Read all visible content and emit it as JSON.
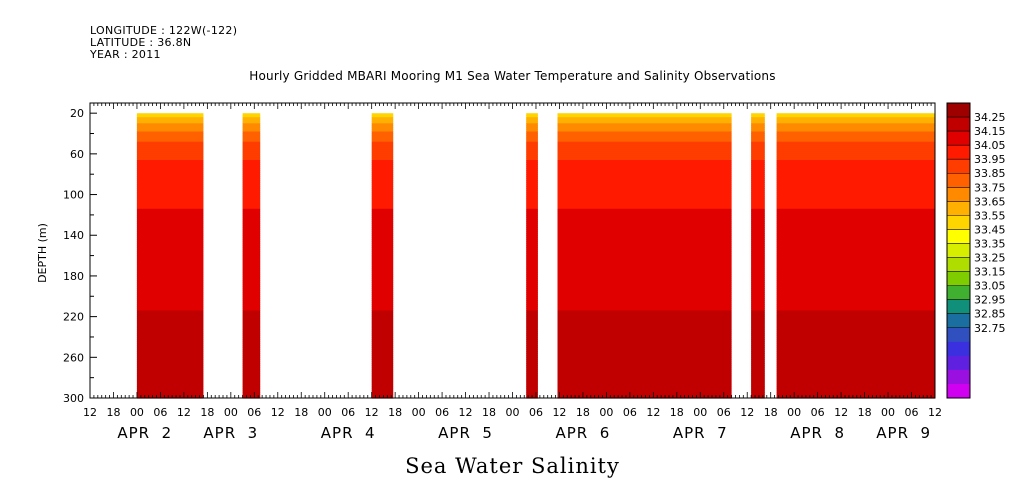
{
  "header": {
    "longitude": "LONGITUDE : 122W(-122)",
    "latitude": "LATITUDE : 36.8N",
    "year": "YEAR : 2011"
  },
  "chart_data": {
    "type": "heatmap",
    "title": "Hourly Gridded MBARI Mooring M1 Sea Water Temperature and Salinity Observations",
    "xlabel": "Sea Water Salinity",
    "ylabel": "DEPTH (m)",
    "x_unit": "hours since APR 1 00:00, 2011",
    "xlim": [
      12,
      228
    ],
    "ylim": [
      300,
      20
    ],
    "y_ticks": [
      20,
      60,
      100,
      140,
      180,
      220,
      260,
      300
    ],
    "hour_ticks": [
      {
        "x": 12,
        "label": "12"
      },
      {
        "x": 18,
        "label": "18"
      },
      {
        "x": 24,
        "label": "00"
      },
      {
        "x": 30,
        "label": "06"
      },
      {
        "x": 36,
        "label": "12"
      },
      {
        "x": 42,
        "label": "18"
      },
      {
        "x": 48,
        "label": "00"
      },
      {
        "x": 54,
        "label": "06"
      },
      {
        "x": 60,
        "label": "12"
      },
      {
        "x": 66,
        "label": "18"
      },
      {
        "x": 72,
        "label": "00"
      },
      {
        "x": 78,
        "label": "06"
      },
      {
        "x": 84,
        "label": "12"
      },
      {
        "x": 90,
        "label": "18"
      },
      {
        "x": 96,
        "label": "00"
      },
      {
        "x": 102,
        "label": "06"
      },
      {
        "x": 108,
        "label": "12"
      },
      {
        "x": 114,
        "label": "18"
      },
      {
        "x": 120,
        "label": "00"
      },
      {
        "x": 126,
        "label": "06"
      },
      {
        "x": 132,
        "label": "12"
      },
      {
        "x": 138,
        "label": "18"
      },
      {
        "x": 144,
        "label": "00"
      },
      {
        "x": 150,
        "label": "06"
      },
      {
        "x": 156,
        "label": "12"
      },
      {
        "x": 162,
        "label": "18"
      },
      {
        "x": 168,
        "label": "00"
      },
      {
        "x": 174,
        "label": "06"
      },
      {
        "x": 180,
        "label": "12"
      },
      {
        "x": 186,
        "label": "18"
      },
      {
        "x": 192,
        "label": "00"
      },
      {
        "x": 198,
        "label": "06"
      },
      {
        "x": 204,
        "label": "12"
      },
      {
        "x": 210,
        "label": "18"
      },
      {
        "x": 216,
        "label": "00"
      },
      {
        "x": 222,
        "label": "06"
      },
      {
        "x": 228,
        "label": "12"
      }
    ],
    "date_labels": [
      {
        "x": 26,
        "label": "APR 2"
      },
      {
        "x": 48,
        "label": "APR 3"
      },
      {
        "x": 78,
        "label": "APR 4"
      },
      {
        "x": 108,
        "label": "APR 5"
      },
      {
        "x": 138,
        "label": "APR 6"
      },
      {
        "x": 168,
        "label": "APR 7"
      },
      {
        "x": 198,
        "label": "APR 8"
      },
      {
        "x": 220,
        "label": "APR 9"
      }
    ],
    "data_segments": [
      {
        "start": 24,
        "end": 41
      },
      {
        "start": 51,
        "end": 55.5
      },
      {
        "start": 84,
        "end": 89.5
      },
      {
        "start": 123.5,
        "end": 126.5
      },
      {
        "start": 131.5,
        "end": 176
      },
      {
        "start": 181,
        "end": 184.5
      },
      {
        "start": 187.5,
        "end": 228
      }
    ],
    "gaps_within_data": [],
    "profile": [
      {
        "depth": 20,
        "value": 33.45
      },
      {
        "depth": 30,
        "value": 33.65
      },
      {
        "depth": 40,
        "value": 33.78
      },
      {
        "depth": 55,
        "value": 33.9
      },
      {
        "depth": 70,
        "value": 33.97
      },
      {
        "depth": 95,
        "value": 34.02
      },
      {
        "depth": 120,
        "value": 34.06
      },
      {
        "depth": 150,
        "value": 34.1
      },
      {
        "depth": 200,
        "value": 34.13
      },
      {
        "depth": 230,
        "value": 34.17
      },
      {
        "depth": 250,
        "value": 34.22
      },
      {
        "depth": 270,
        "value": 34.2
      },
      {
        "depth": 300,
        "value": 34.19
      }
    ],
    "colorbar": {
      "levels": [
        "34.25",
        "34.15",
        "34.05",
        "33.95",
        "33.85",
        "33.75",
        "33.65",
        "33.55",
        "33.45",
        "33.35",
        "33.25",
        "33.15",
        "33.05",
        "32.95",
        "32.85",
        "32.75"
      ],
      "colors": [
        "#9e0000",
        "#c00000",
        "#e00000",
        "#ff1a00",
        "#ff3d00",
        "#ff6000",
        "#ff8a00",
        "#ffb000",
        "#ffd500",
        "#ffff00",
        "#d8ee00",
        "#b0dd00",
        "#7fcc00",
        "#3fb030",
        "#10907a",
        "#1a6fa0",
        "#3050c0",
        "#3a30e0",
        "#6020e0",
        "#9a10e0",
        "#d000f0"
      ]
    }
  }
}
